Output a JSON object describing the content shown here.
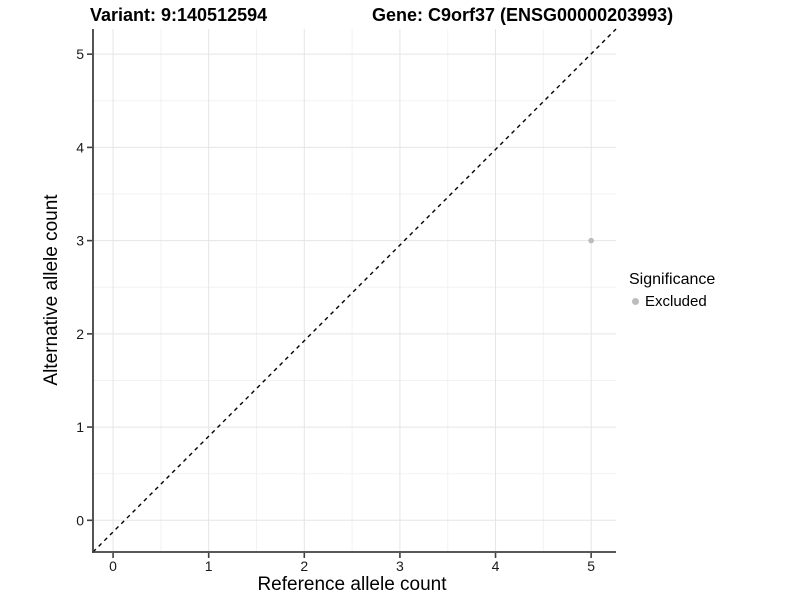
{
  "chart_data": {
    "type": "scatter",
    "title_variant": "Variant: 9:140512594",
    "title_gene": "Gene: C9orf37 (ENSG00000203993)",
    "xlabel": "Reference allele count",
    "ylabel": "Alternative allele count",
    "xlim": [
      -0.21,
      5.26
    ],
    "ylim": [
      -0.34,
      5.27
    ],
    "x_ticks": [
      0,
      1,
      2,
      3,
      4,
      5
    ],
    "y_ticks": [
      0,
      1,
      2,
      3,
      4,
      5
    ],
    "grid": true,
    "minor_grid": true,
    "series": [
      {
        "name": "Excluded",
        "color": "#bcbcbc",
        "point_radius": 2.8,
        "points": [
          {
            "x": 5,
            "y": 3
          }
        ]
      }
    ],
    "reference_line": {
      "kind": "identity",
      "style": "dashed",
      "color": "#000000"
    },
    "legend": {
      "title": "Significance",
      "position": "right",
      "entries": [
        "Excluded"
      ]
    },
    "colors": {
      "background": "#ffffff",
      "grid_major": "#e5e5e5",
      "grid_minor": "#f2f2f2",
      "axis_line": "#404040",
      "tick_mark": "#404040",
      "tick_text": "#1a1a1a"
    }
  }
}
